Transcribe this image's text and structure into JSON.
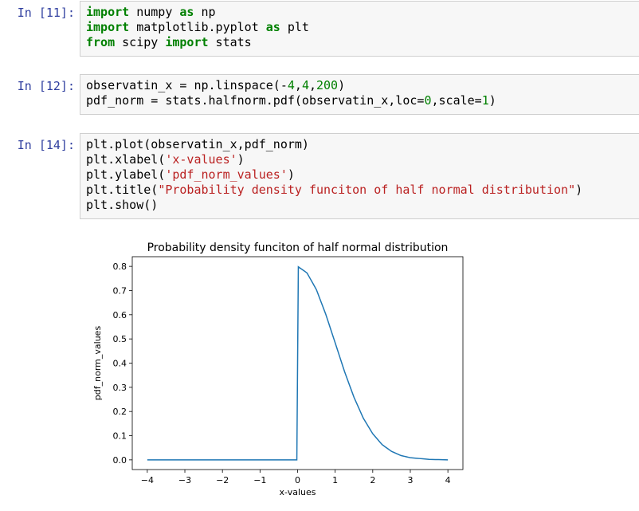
{
  "cells": [
    {
      "prompt": "In [11]:",
      "lines": [
        [
          {
            "t": "import",
            "c": "kw"
          },
          {
            "t": " numpy "
          },
          {
            "t": "as",
            "c": "kw"
          },
          {
            "t": " np"
          }
        ],
        [
          {
            "t": "import",
            "c": "kw"
          },
          {
            "t": " matplotlib.pyplot "
          },
          {
            "t": "as",
            "c": "kw"
          },
          {
            "t": " plt"
          }
        ],
        [
          {
            "t": "from",
            "c": "kw"
          },
          {
            "t": " scipy "
          },
          {
            "t": "import",
            "c": "kw"
          },
          {
            "t": " stats"
          }
        ]
      ]
    },
    {
      "prompt": "In [12]:",
      "lines": [
        [
          {
            "t": "observatin_x = np.linspace(-"
          },
          {
            "t": "4",
            "c": "num"
          },
          {
            "t": ","
          },
          {
            "t": "4",
            "c": "num"
          },
          {
            "t": ","
          },
          {
            "t": "200",
            "c": "num"
          },
          {
            "t": ")"
          }
        ],
        [
          {
            "t": "pdf_norm = stats.halfnorm.pdf(observatin_x,loc="
          },
          {
            "t": "0",
            "c": "num"
          },
          {
            "t": ",scale="
          },
          {
            "t": "1",
            "c": "num"
          },
          {
            "t": ")"
          }
        ]
      ]
    },
    {
      "prompt": "In [14]:",
      "lines": [
        [
          {
            "t": "plt.plot(observatin_x,pdf_norm)"
          }
        ],
        [
          {
            "t": "plt.xlabel("
          },
          {
            "t": "'x-values'",
            "c": "str"
          },
          {
            "t": ")"
          }
        ],
        [
          {
            "t": "plt.ylabel("
          },
          {
            "t": "'pdf_norm_values'",
            "c": "str"
          },
          {
            "t": ")"
          }
        ],
        [
          {
            "t": "plt.title("
          },
          {
            "t": "\"Probability density funciton of half normal distribution\"",
            "c": "str"
          },
          {
            "t": ")"
          }
        ],
        [
          {
            "t": "plt.show()"
          }
        ]
      ]
    }
  ],
  "chart_data": {
    "type": "line",
    "title": "Probability density funciton of half normal distribution",
    "xlabel": "x-values",
    "ylabel": "pdf_norm_values",
    "xlim": [
      -4.4,
      4.4
    ],
    "ylim": [
      -0.04,
      0.84
    ],
    "xticks": [
      -4,
      -3,
      -2,
      -1,
      0,
      1,
      2,
      3,
      4
    ],
    "xtick_labels": [
      "−4",
      "−3",
      "−2",
      "−1",
      "0",
      "1",
      "2",
      "3",
      "4"
    ],
    "yticks": [
      0.0,
      0.1,
      0.2,
      0.3,
      0.4,
      0.5,
      0.6,
      0.7,
      0.8
    ],
    "ytick_labels": [
      "0.0",
      "0.1",
      "0.2",
      "0.3",
      "0.4",
      "0.5",
      "0.6",
      "0.7",
      "0.8"
    ],
    "grid": false,
    "line_color": "#1f77b4",
    "series": [
      {
        "x": [
          -4.0,
          -2.0,
          -0.02,
          0.02,
          0.25,
          0.5,
          0.75,
          1.0,
          1.25,
          1.5,
          1.75,
          2.0,
          2.25,
          2.5,
          2.75,
          3.0,
          3.5,
          4.0
        ],
        "y": [
          0.0,
          0.0,
          0.0,
          0.798,
          0.773,
          0.704,
          0.602,
          0.484,
          0.365,
          0.259,
          0.172,
          0.108,
          0.063,
          0.035,
          0.018,
          0.009,
          0.002,
          0.0
        ]
      }
    ]
  }
}
